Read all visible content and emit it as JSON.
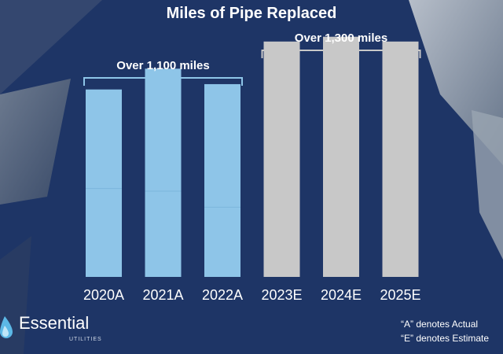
{
  "colors": {
    "background": "#1e3566",
    "actual_bar": "#8ec5e8",
    "estimate_bar": "#c8c8c8",
    "bracket_actual": "#8ec5e8",
    "bracket_estimate": "#c8c8c8",
    "text": "#ffffff"
  },
  "chart_data": {
    "type": "bar",
    "title": "Miles of Pipe Replaced",
    "categories": [
      "2020A",
      "2021A",
      "2022A",
      "2023E",
      "2024E",
      "2025E"
    ],
    "values": [
      352,
      391,
      362,
      442,
      451,
      442
    ],
    "segments": [
      [
        166,
        186
      ],
      [
        161,
        230
      ],
      [
        131,
        231
      ],
      [
        442
      ],
      [
        451
      ],
      [
        442
      ]
    ],
    "series_kind": [
      "actual",
      "actual",
      "actual",
      "estimate",
      "estimate",
      "estimate"
    ],
    "ylim": [
      0,
      520
    ],
    "xlabel": "",
    "ylabel": "",
    "annotations": [
      {
        "text": "Over 1,100 miles",
        "spans": [
          "2020A",
          "2022A"
        ]
      },
      {
        "text": "Over 1,300 miles",
        "spans": [
          "2023E",
          "2025E"
        ]
      }
    ]
  },
  "footnotes": [
    "“A” denotes Actual",
    "“E” denotes Estimate"
  ],
  "logo": {
    "name": "Essential",
    "tagline": "UTILITIES",
    "icon": "water-drop-icon"
  }
}
